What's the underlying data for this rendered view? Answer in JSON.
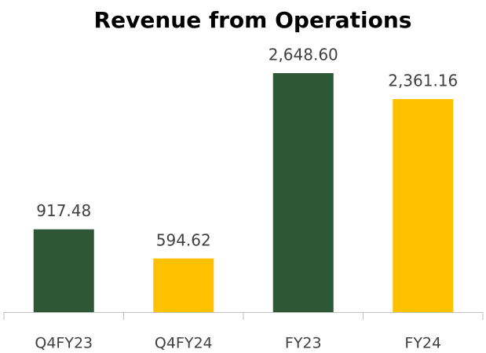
{
  "chart_data": {
    "type": "bar",
    "title": "Revenue from Operations",
    "categories": [
      "Q4FY23",
      "Q4FY24",
      "FY23",
      "FY24"
    ],
    "values": [
      917.48,
      594.62,
      2648.6,
      2361.16
    ],
    "value_labels": [
      "917.48",
      "594.62",
      "2,648.60",
      "2,361.16"
    ],
    "colors": [
      "#2d5736",
      "#ffc000",
      "#2d5736",
      "#ffc000"
    ]
  }
}
